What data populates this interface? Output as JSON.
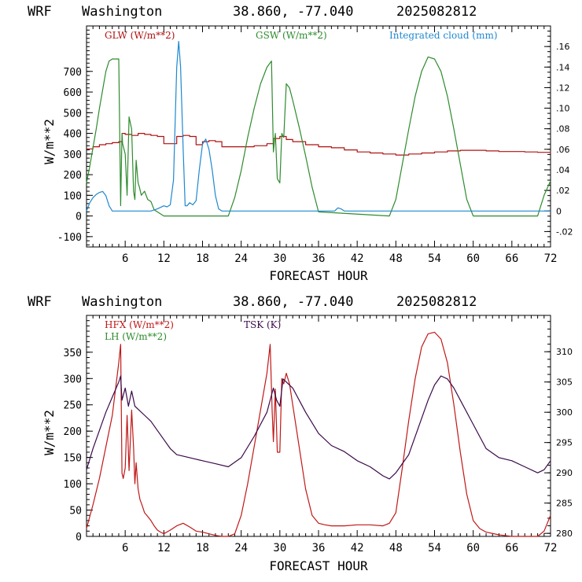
{
  "chart_data": [
    {
      "type": "line",
      "header": {
        "model": "WRF",
        "location": "Washington",
        "coords": "38.860, -77.040",
        "run": "2025082812"
      },
      "xlabel": "FORECAST HOUR",
      "ylabel": "W/m**2",
      "xlim": [
        0,
        72
      ],
      "xticks": [
        6,
        12,
        18,
        24,
        30,
        36,
        42,
        48,
        54,
        60,
        66,
        72
      ],
      "ylim": [
        -150,
        920
      ],
      "yticks": [
        -100,
        0,
        100,
        200,
        300,
        400,
        500,
        600,
        700
      ],
      "y2lim": [
        -0.035,
        0.18
      ],
      "y2ticks": [
        -0.02,
        0,
        0.02,
        0.04,
        0.06,
        0.08,
        0.1,
        0.12,
        0.14,
        0.16
      ],
      "y2ticklabels": [
        "-.02",
        "0",
        ".02",
        ".04",
        ".06",
        ".08",
        ".10",
        ".12",
        ".14",
        ".16"
      ],
      "legend_position": "top",
      "series": [
        {
          "name": "GLW (W/m**2)",
          "color": "#b01010",
          "axis": "left",
          "step": true,
          "x": [
            0,
            1,
            2,
            3,
            4,
            5,
            5.5,
            6,
            7,
            8,
            9,
            10,
            11,
            12,
            13,
            14,
            15,
            16,
            17,
            18,
            19,
            20,
            21,
            22,
            23,
            24,
            26,
            28,
            29,
            30,
            31,
            32,
            34,
            36,
            38,
            40,
            42,
            44,
            46,
            48,
            50,
            52,
            54,
            56,
            58,
            60,
            62,
            64,
            66,
            68,
            70,
            72
          ],
          "y": [
            325,
            335,
            345,
            350,
            355,
            360,
            400,
            395,
            390,
            400,
            395,
            390,
            385,
            350,
            350,
            385,
            390,
            385,
            345,
            360,
            365,
            360,
            335,
            335,
            335,
            335,
            340,
            350,
            375,
            385,
            370,
            360,
            345,
            335,
            330,
            320,
            310,
            305,
            300,
            295,
            300,
            305,
            310,
            315,
            318,
            318,
            315,
            312,
            312,
            310,
            308,
            305
          ]
        },
        {
          "name": "GSW (W/m**2)",
          "color": "#2e8b2e",
          "axis": "left",
          "x": [
            0,
            0.5,
            1,
            1.5,
            2,
            2.5,
            3,
            3.5,
            4,
            4.5,
            5,
            5.3,
            5.5,
            5.6,
            6,
            6.3,
            6.6,
            7,
            7.3,
            7.5,
            7.7,
            8,
            8.2,
            8.5,
            9,
            9.5,
            10,
            10.5,
            11,
            11.5,
            12,
            22,
            23,
            24,
            25,
            26,
            27,
            28,
            28.7,
            29,
            29.3,
            29.6,
            30,
            30.3,
            30.6,
            31,
            31.5,
            32,
            33,
            34,
            35,
            36,
            47,
            48,
            49,
            50,
            51,
            52,
            53,
            54,
            55,
            56,
            57,
            58,
            59,
            60,
            70,
            71,
            72
          ],
          "y": [
            160,
            240,
            330,
            420,
            520,
            610,
            700,
            750,
            760,
            760,
            760,
            50,
            400,
            350,
            300,
            100,
            480,
            420,
            120,
            80,
            270,
            160,
            140,
            100,
            120,
            80,
            70,
            30,
            20,
            10,
            0,
            0,
            90,
            220,
            380,
            520,
            640,
            720,
            750,
            310,
            400,
            180,
            160,
            400,
            380,
            640,
            620,
            560,
            430,
            290,
            140,
            20,
            0,
            80,
            250,
            420,
            580,
            700,
            770,
            760,
            700,
            580,
            420,
            250,
            80,
            0,
            0,
            100,
            170
          ]
        },
        {
          "name": "Integrated cloud (mm)",
          "color": "#1e88d0",
          "axis": "right",
          "x": [
            0,
            0.5,
            1,
            1.5,
            2,
            2.5,
            3,
            3.5,
            4,
            10,
            11,
            12,
            12.5,
            13,
            13.5,
            14,
            14.3,
            14.6,
            15,
            15.3,
            15.6,
            16,
            16.5,
            17,
            17.5,
            18,
            18.5,
            19,
            19.5,
            20,
            20.5,
            21,
            38.5,
            39,
            39.5,
            40,
            72
          ],
          "y": [
            0,
            0.008,
            0.013,
            0.016,
            0.018,
            0.019,
            0.015,
            0.005,
            0,
            0,
            0.002,
            0.005,
            0.004,
            0.006,
            0.03,
            0.14,
            0.165,
            0.14,
            0.06,
            0.005,
            0.005,
            0.008,
            0.006,
            0.01,
            0.04,
            0.065,
            0.07,
            0.06,
            0.04,
            0.015,
            0.002,
            0,
            0,
            0.003,
            0.002,
            0,
            0
          ]
        }
      ]
    },
    {
      "type": "line",
      "header": {
        "model": "WRF",
        "location": "Washington",
        "coords": "38.860, -77.040",
        "run": "2025082812"
      },
      "xlabel": "FORECAST HOUR",
      "ylabel": "W/m**2",
      "xlim": [
        0,
        72
      ],
      "xticks": [
        6,
        12,
        18,
        24,
        30,
        36,
        42,
        48,
        54,
        60,
        66,
        72
      ],
      "ylim": [
        0,
        420
      ],
      "yticks": [
        0,
        50,
        100,
        150,
        200,
        250,
        300,
        350
      ],
      "y2lim": [
        279.5,
        316
      ],
      "y2ticks": [
        280,
        285,
        290,
        295,
        300,
        305,
        310
      ],
      "y2ticklabels": [
        "280",
        "285",
        "290",
        "295",
        "300",
        "305",
        "310"
      ],
      "legend_position": "top-left",
      "series": [
        {
          "name": "HFX (W/m**2)",
          "color": "#c01818",
          "axis": "left",
          "x": [
            0,
            1,
            2,
            3,
            4,
            4.5,
            5,
            5.3,
            5.5,
            5.7,
            6,
            6.3,
            6.6,
            7,
            7.3,
            7.5,
            7.7,
            8,
            8.3,
            8.6,
            9,
            9.5,
            10,
            10.5,
            11,
            11.5,
            12,
            13,
            14,
            15,
            16,
            17,
            18,
            19,
            20,
            21,
            22,
            23,
            24,
            25,
            26,
            27,
            28,
            28.5,
            28.8,
            29,
            29.3,
            29.6,
            30,
            30.3,
            30.6,
            31,
            31.5,
            32,
            33,
            34,
            35,
            36,
            37,
            38,
            40,
            42,
            44,
            46,
            47,
            48,
            49,
            50,
            51,
            52,
            53,
            54,
            55,
            56,
            57,
            58,
            59,
            60,
            61,
            62,
            64,
            66,
            68,
            70,
            71,
            72
          ],
          "y": [
            15,
            60,
            110,
            170,
            230,
            280,
            330,
            365,
            120,
            110,
            130,
            230,
            125,
            240,
            170,
            100,
            140,
            90,
            70,
            60,
            45,
            38,
            30,
            20,
            12,
            8,
            5,
            12,
            20,
            25,
            18,
            10,
            8,
            5,
            2,
            0,
            0,
            5,
            40,
            100,
            170,
            240,
            310,
            365,
            240,
            180,
            280,
            160,
            160,
            300,
            290,
            310,
            290,
            250,
            170,
            90,
            40,
            25,
            22,
            20,
            20,
            22,
            22,
            20,
            25,
            45,
            130,
            220,
            300,
            360,
            385,
            388,
            375,
            330,
            250,
            160,
            80,
            30,
            15,
            8,
            3,
            0,
            0,
            0,
            10,
            40
          ]
        },
        {
          "name": "LH  (W/m**2)",
          "color": "#2e8b2e",
          "axis": "left",
          "x": [],
          "y": []
        },
        {
          "name": "TSK (K)",
          "color": "#3a0a4a",
          "axis": "right",
          "x": [
            0,
            1,
            2,
            3,
            4,
            5,
            5.3,
            5.5,
            6,
            6.5,
            7,
            7.5,
            8,
            9,
            10,
            11,
            12,
            13,
            14,
            16,
            18,
            20,
            22,
            24,
            26,
            28,
            29,
            29.5,
            30,
            30.5,
            31,
            32,
            34,
            36,
            38,
            40,
            42,
            44,
            46,
            47,
            48,
            50,
            52,
            53,
            54,
            55,
            56,
            57,
            58,
            60,
            62,
            64,
            66,
            68,
            70,
            71,
            72
          ],
          "y": [
            290.5,
            294,
            297,
            300,
            302.5,
            305,
            306,
            302,
            304,
            301,
            303.5,
            301,
            300.5,
            299.5,
            298.5,
            297,
            295.5,
            294,
            293,
            292.5,
            292,
            291.5,
            291,
            292.5,
            296,
            300,
            304,
            302,
            301,
            305.5,
            305,
            304,
            300,
            296.5,
            294.5,
            293.5,
            292,
            291,
            289.5,
            289,
            290,
            293,
            299,
            302,
            304.5,
            306,
            305.5,
            304,
            302,
            298,
            294,
            292.5,
            292,
            291,
            290,
            290.5,
            292
          ]
        }
      ]
    }
  ]
}
